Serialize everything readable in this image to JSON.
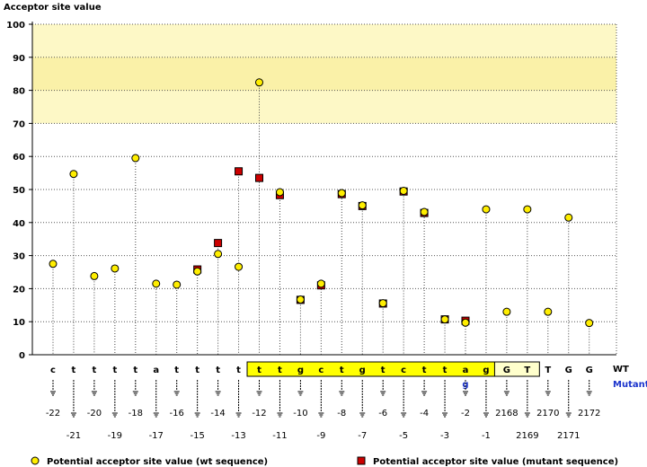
{
  "chart_data": {
    "type": "scatter",
    "ylabel": "Acceptor site value",
    "ylim": [
      0,
      100
    ],
    "yticks": [
      0,
      10,
      20,
      30,
      40,
      50,
      60,
      70,
      80,
      90,
      100
    ],
    "grid": true,
    "highlight_band": {
      "from": 70,
      "to": 100,
      "color": "#fdf8c6",
      "strong_from": 80,
      "strong_to": 90,
      "strong_color": "#faf1a8"
    },
    "row_labels": {
      "wt": "WT",
      "mutant": "Mutant"
    },
    "positions": [
      {
        "base": "c",
        "pos": "-22",
        "wt": 27.5,
        "mutant": null,
        "mut_base": ""
      },
      {
        "base": "t",
        "pos": "-21",
        "wt": 54.7,
        "mutant": null,
        "mut_base": ""
      },
      {
        "base": "t",
        "pos": "-20",
        "wt": 23.8,
        "mutant": null,
        "mut_base": ""
      },
      {
        "base": "t",
        "pos": "-19",
        "wt": 26.1,
        "mutant": null,
        "mut_base": ""
      },
      {
        "base": "t",
        "pos": "-18",
        "wt": 59.5,
        "mutant": null,
        "mut_base": ""
      },
      {
        "base": "a",
        "pos": "-17",
        "wt": 21.5,
        "mutant": null,
        "mut_base": ""
      },
      {
        "base": "t",
        "pos": "-16",
        "wt": 21.2,
        "mutant": null,
        "mut_base": ""
      },
      {
        "base": "t",
        "pos": "-15",
        "wt": 25.2,
        "mutant": 25.8,
        "mut_base": ""
      },
      {
        "base": "t",
        "pos": "-14",
        "wt": 30.5,
        "mutant": 33.8,
        "mut_base": ""
      },
      {
        "base": "t",
        "pos": "-13",
        "wt": 26.6,
        "mutant": 55.5,
        "mut_base": ""
      },
      {
        "base": "t",
        "pos": "-12",
        "wt": 82.4,
        "mutant": 53.5,
        "mut_base": ""
      },
      {
        "base": "t",
        "pos": "-11",
        "wt": 49.2,
        "mutant": 48.3,
        "mut_base": ""
      },
      {
        "base": "g",
        "pos": "-10",
        "wt": 16.7,
        "mutant": 16.6,
        "mut_base": ""
      },
      {
        "base": "c",
        "pos": "-9",
        "wt": 21.5,
        "mutant": 21.0,
        "mut_base": ""
      },
      {
        "base": "t",
        "pos": "-8",
        "wt": 48.9,
        "mutant": 48.6,
        "mut_base": ""
      },
      {
        "base": "g",
        "pos": "-7",
        "wt": 45.2,
        "mutant": 45.0,
        "mut_base": ""
      },
      {
        "base": "t",
        "pos": "-6",
        "wt": 15.6,
        "mutant": 15.5,
        "mut_base": ""
      },
      {
        "base": "c",
        "pos": "-5",
        "wt": 49.6,
        "mutant": 49.4,
        "mut_base": ""
      },
      {
        "base": "t",
        "pos": "-4",
        "wt": 43.2,
        "mutant": 42.9,
        "mut_base": ""
      },
      {
        "base": "t",
        "pos": "-3",
        "wt": 10.7,
        "mutant": 10.7,
        "mut_base": ""
      },
      {
        "base": "a",
        "pos": "-2",
        "wt": 9.7,
        "mutant": 10.3,
        "mut_base": "g"
      },
      {
        "base": "g",
        "pos": "-1",
        "wt": 44.0,
        "mutant": null,
        "mut_base": ""
      },
      {
        "base": "G",
        "pos": "2168",
        "wt": 13.0,
        "mutant": null,
        "mut_base": ""
      },
      {
        "base": "T",
        "pos": "2169",
        "wt": 44.0,
        "mutant": null,
        "mut_base": ""
      },
      {
        "base": "T",
        "pos": "2170",
        "wt": 13.0,
        "mutant": null,
        "mut_base": ""
      },
      {
        "base": "G",
        "pos": "2171",
        "wt": 41.5,
        "mutant": null,
        "mut_base": ""
      },
      {
        "base": "G",
        "pos": "2172",
        "wt": 9.6,
        "mutant": null,
        "mut_base": ""
      }
    ],
    "boxes": [
      {
        "from_index": 10,
        "to_index": 21,
        "fill": "#ffff00"
      },
      {
        "from_index": 22,
        "to_index": 23,
        "fill": "#ffffcc"
      }
    ],
    "legend": [
      {
        "label": "Potential acceptor site value (wt sequence)",
        "marker": "circle",
        "color": "#ffee00"
      },
      {
        "label": "Potential acceptor site value (mutant sequence)",
        "marker": "square",
        "color": "#cc0000"
      }
    ]
  }
}
